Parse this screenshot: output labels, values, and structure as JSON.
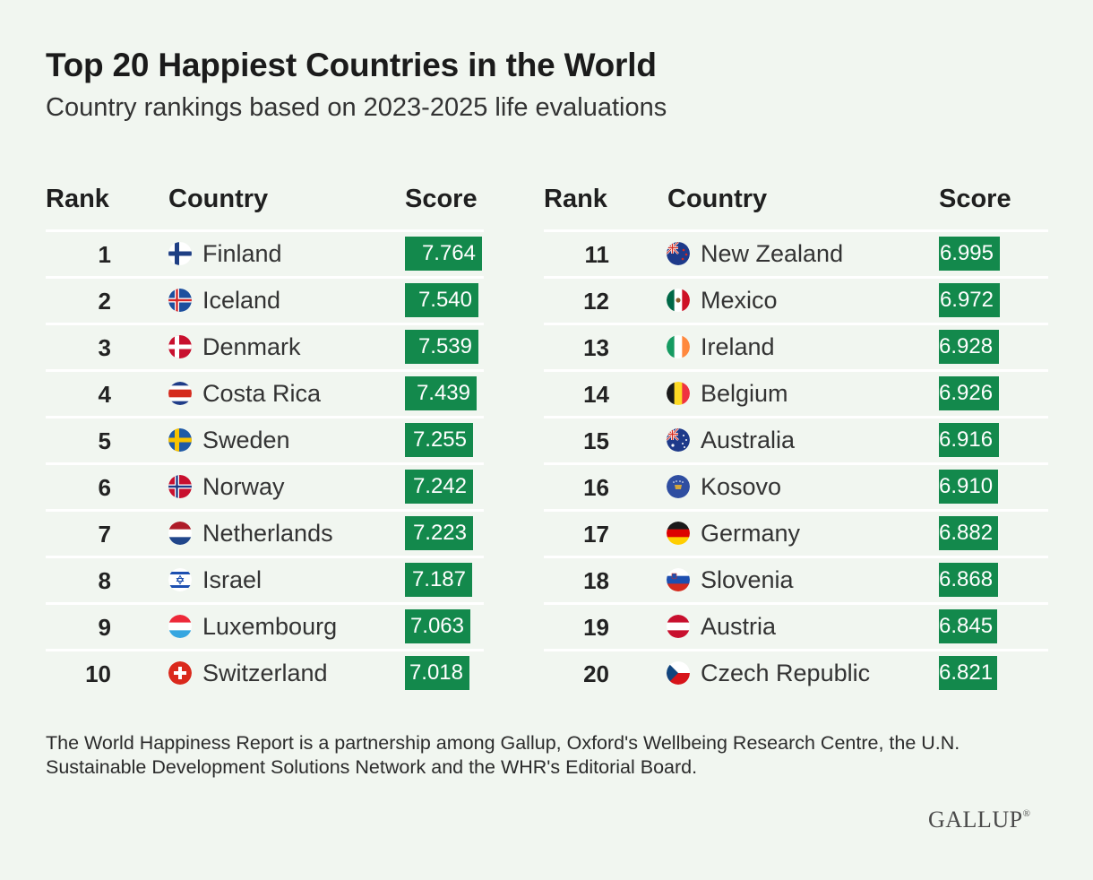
{
  "header": {
    "title": "Top 20 Happiest Countries in the World",
    "subtitle": "Country rankings based on 2023-2025 life evaluations"
  },
  "columns": {
    "rank": "Rank",
    "country": "Country",
    "score": "Score"
  },
  "colors": {
    "background": "#f1f6f0",
    "bar": "#13894c",
    "divider": "#ffffff"
  },
  "chart_data": {
    "type": "table",
    "title": "Top 20 Happiest Countries in the World",
    "subtitle": "Country rankings based on 2023-2025 life evaluations",
    "score_range": [
      0,
      7.764
    ],
    "rows": [
      {
        "rank": "1",
        "country": "Finland",
        "flag": "finland-flag-icon",
        "score": "7.764"
      },
      {
        "rank": "2",
        "country": "Iceland",
        "flag": "iceland-flag-icon",
        "score": "7.540"
      },
      {
        "rank": "3",
        "country": "Denmark",
        "flag": "denmark-flag-icon",
        "score": "7.539"
      },
      {
        "rank": "4",
        "country": "Costa Rica",
        "flag": "costa-rica-flag-icon",
        "score": "7.439"
      },
      {
        "rank": "5",
        "country": "Sweden",
        "flag": "sweden-flag-icon",
        "score": "7.255"
      },
      {
        "rank": "6",
        "country": "Norway",
        "flag": "norway-flag-icon",
        "score": "7.242"
      },
      {
        "rank": "7",
        "country": "Netherlands",
        "flag": "netherlands-flag-icon",
        "score": "7.223"
      },
      {
        "rank": "8",
        "country": "Israel",
        "flag": "israel-flag-icon",
        "score": "7.187"
      },
      {
        "rank": "9",
        "country": "Luxembourg",
        "flag": "luxembourg-flag-icon",
        "score": "7.063"
      },
      {
        "rank": "10",
        "country": "Switzerland",
        "flag": "switzerland-flag-icon",
        "score": "7.018"
      },
      {
        "rank": "11",
        "country": "New Zealand",
        "flag": "new-zealand-flag-icon",
        "score": "6.995"
      },
      {
        "rank": "12",
        "country": "Mexico",
        "flag": "mexico-flag-icon",
        "score": "6.972"
      },
      {
        "rank": "13",
        "country": "Ireland",
        "flag": "ireland-flag-icon",
        "score": "6.928"
      },
      {
        "rank": "14",
        "country": "Belgium",
        "flag": "belgium-flag-icon",
        "score": "6.926"
      },
      {
        "rank": "15",
        "country": "Australia",
        "flag": "australia-flag-icon",
        "score": "6.916"
      },
      {
        "rank": "16",
        "country": "Kosovo",
        "flag": "kosovo-flag-icon",
        "score": "6.910"
      },
      {
        "rank": "17",
        "country": "Germany",
        "flag": "germany-flag-icon",
        "score": "6.882"
      },
      {
        "rank": "18",
        "country": "Slovenia",
        "flag": "slovenia-flag-icon",
        "score": "6.868"
      },
      {
        "rank": "19",
        "country": "Austria",
        "flag": "austria-flag-icon",
        "score": "6.845"
      },
      {
        "rank": "20",
        "country": "Czech Republic",
        "flag": "czech-republic-flag-icon",
        "score": "6.821"
      }
    ]
  },
  "footer": {
    "note": "The World Happiness Report is a partnership among Gallup, Oxford's Wellbeing Research Centre, the U.N. Sustainable Development Solutions Network and the WHR's Editorial Board.",
    "logo": "GALLUP"
  }
}
